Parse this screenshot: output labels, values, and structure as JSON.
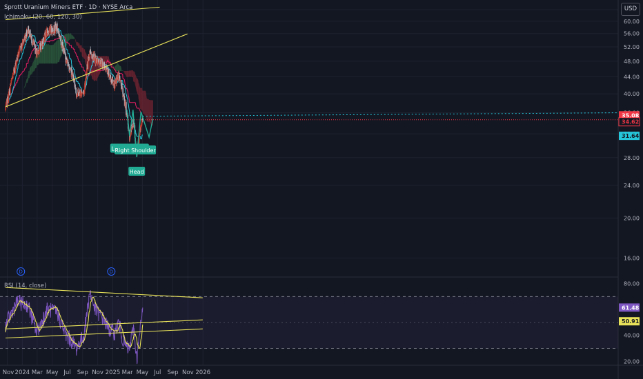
{
  "header": {
    "title": "Sprott Uranium Miners ETF · 1D · NYSE Arca",
    "indicator": "Ichimoku (20, 60, 120, 30)",
    "rsi_label": "RSI (14, close)",
    "currency": "USD"
  },
  "colors": {
    "background": "#131722",
    "candle_up": "#c0392b",
    "candle_down": "#b2b5be",
    "conversion": "#26c6da",
    "base": "#e91e63",
    "kumo_bull": "#2e5e3e",
    "kumo_bear": "#7a2633",
    "trendline": "#e8e25a",
    "pattern": "#22ab94",
    "rsi": "#7e57c2",
    "rsi_ma": "#e8e25a"
  },
  "chart_data": [
    {
      "type": "candlestick",
      "name": "price",
      "y_scale": "log",
      "ylim": [
        14.5,
        66
      ],
      "yticks": [
        16,
        20,
        24,
        28,
        32,
        36,
        40,
        44,
        48,
        52,
        56,
        60,
        64
      ],
      "x_labels": [
        "Nov",
        "2024",
        "Mar",
        "May",
        "Jul",
        "Sep",
        "Nov",
        "2025",
        "Mar",
        "May",
        "Jul",
        "Sep",
        "Nov",
        "2026"
      ],
      "price_labels": [
        {
          "value": "35.08",
          "color": "#f23645"
        },
        {
          "value": "34.62",
          "color": "#131722"
        },
        {
          "value": "31.64",
          "color": "#26c6da"
        }
      ],
      "key_points": [
        {
          "date": "2023-10-25",
          "close": 36.5
        },
        {
          "date": "2023-12-12",
          "close": 49.0
        },
        {
          "date": "2024-01-24",
          "close": 57.5
        },
        {
          "date": "2024-02-28",
          "close": 50.0
        },
        {
          "date": "2024-04-11",
          "close": 56.5
        },
        {
          "date": "2024-05-20",
          "close": 58.0
        },
        {
          "date": "2024-06-26",
          "close": 48.5
        },
        {
          "date": "2024-07-25",
          "close": 44.0
        },
        {
          "date": "2024-08-07",
          "close": 40.0
        },
        {
          "date": "2024-09-06",
          "close": 40.5
        },
        {
          "date": "2024-09-30",
          "close": 51.0
        },
        {
          "date": "2024-10-22",
          "close": 48.5
        },
        {
          "date": "2024-11-25",
          "close": 47.0
        },
        {
          "date": "2024-12-20",
          "close": 44.0
        },
        {
          "date": "2025-01-10",
          "close": 42.0
        },
        {
          "date": "2025-01-24",
          "close": 44.5
        },
        {
          "date": "2025-02-12",
          "close": 40.0
        },
        {
          "date": "2025-02-27",
          "close": 35.5
        },
        {
          "date": "2025-03-10",
          "close": 31.5
        },
        {
          "date": "2025-03-26",
          "close": 34.5
        },
        {
          "date": "2025-04-08",
          "close": 28.5
        },
        {
          "date": "2025-04-22",
          "close": 32.5
        },
        {
          "date": "2025-05-02",
          "close": 34.62
        }
      ],
      "last_close": 34.62,
      "trendlines": [
        {
          "from": {
            "date": "2023-10-25",
            "price": 60.5
          },
          "to": {
            "date": "2025-07-10",
            "price": 64.9
          }
        },
        {
          "from": {
            "date": "2023-10-25",
            "price": 37.2
          },
          "to": {
            "date": "2025-10-30",
            "price": 55.9
          }
        }
      ],
      "annotations": [
        "Left Shoulder",
        "Head",
        "Right Shoulder"
      ],
      "pattern": [
        {
          "date": "2025-02-27",
          "price": 36.6
        },
        {
          "date": "2025-03-10",
          "price": 31.6
        },
        {
          "date": "2025-03-24",
          "price": 36.6
        },
        {
          "date": "2025-04-08",
          "price": 28.1
        },
        {
          "date": "2025-04-25",
          "price": 36.2
        },
        {
          "date": "2025-05-28",
          "price": 31.4
        },
        {
          "date": "2025-06-12",
          "price": 34.8
        }
      ],
      "dividends": [
        "2023-12-26",
        "2024-12-26"
      ]
    },
    {
      "type": "line",
      "name": "RSI",
      "ylim": [
        17,
        84
      ],
      "yticks": [
        20,
        40,
        60,
        80
      ],
      "bands": [
        30,
        70
      ],
      "last_rsi": "61.48",
      "last_ma": "50.91",
      "key_points": [
        {
          "date": "2023-10-25",
          "rsi": 48
        },
        {
          "date": "2023-12-12",
          "rsi": 66
        },
        {
          "date": "2024-01-24",
          "rsi": 63
        },
        {
          "date": "2024-02-28",
          "rsi": 42
        },
        {
          "date": "2024-04-11",
          "rsi": 60
        },
        {
          "date": "2024-05-20",
          "rsi": 58
        },
        {
          "date": "2024-06-26",
          "rsi": 40
        },
        {
          "date": "2024-07-25",
          "rsi": 34
        },
        {
          "date": "2024-08-07",
          "rsi": 30
        },
        {
          "date": "2024-09-06",
          "rsi": 40
        },
        {
          "date": "2024-09-30",
          "rsi": 74
        },
        {
          "date": "2024-10-22",
          "rsi": 60
        },
        {
          "date": "2024-11-25",
          "rsi": 52
        },
        {
          "date": "2024-12-20",
          "rsi": 44
        },
        {
          "date": "2025-01-10",
          "rsi": 42
        },
        {
          "date": "2025-01-24",
          "rsi": 50
        },
        {
          "date": "2025-02-12",
          "rsi": 36
        },
        {
          "date": "2025-02-27",
          "rsi": 30
        },
        {
          "date": "2025-03-10",
          "rsi": 30
        },
        {
          "date": "2025-03-26",
          "rsi": 47
        },
        {
          "date": "2025-04-08",
          "rsi": 22
        },
        {
          "date": "2025-04-22",
          "rsi": 44
        },
        {
          "date": "2025-05-02",
          "rsi": 61.48
        }
      ],
      "trendlines": [
        {
          "from": {
            "date": "2023-10-25",
            "rsi": 77
          },
          "to": {
            "date": "2025-12-31",
            "rsi": 69
          }
        },
        {
          "from": {
            "date": "2023-10-25",
            "rsi": 45
          },
          "to": {
            "date": "2025-12-31",
            "rsi": 52
          }
        },
        {
          "from": {
            "date": "2023-10-25",
            "rsi": 38
          },
          "to": {
            "date": "2025-12-31",
            "rsi": 45
          }
        }
      ]
    }
  ]
}
